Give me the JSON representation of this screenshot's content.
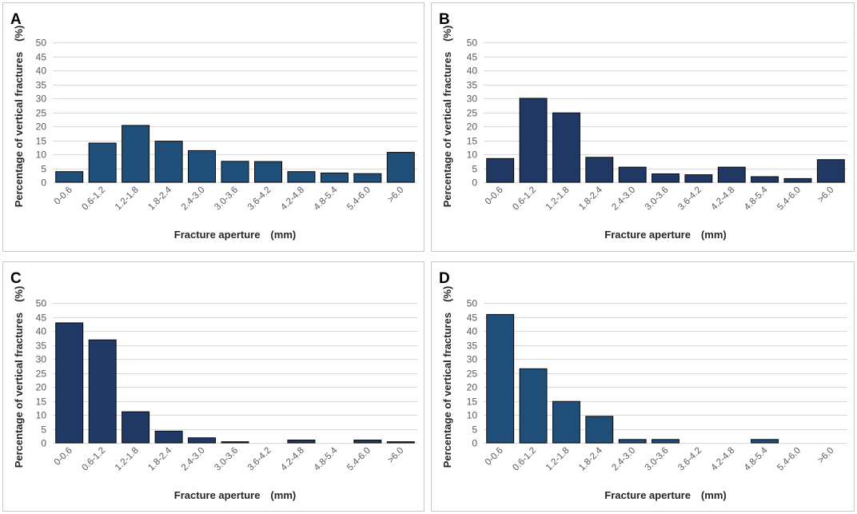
{
  "figure": {
    "xlabel": "Fracture aperture　(mm)",
    "ylabel": "Percentage of vertical fractures　(%)"
  },
  "chart_data": [
    {
      "type": "bar",
      "panel": "A",
      "title": "A",
      "xlabel": "Fracture aperture　(mm)",
      "ylabel": "Percentage of vertical fractures　(%)",
      "categories": [
        "0-0.6",
        "0.6-1.2",
        "1.2-1.8",
        "1.8-2.4",
        "2.4-3.0",
        "3.0-3.6",
        "3.6-4.2",
        "4.2-4.8",
        "4.8-5.4",
        "5.4-6.0",
        ">6.0"
      ],
      "values": [
        3.8,
        14.0,
        20.3,
        14.7,
        11.3,
        7.5,
        7.4,
        3.8,
        3.3,
        3.1,
        10.7
      ],
      "ylim": [
        0,
        50
      ],
      "yticks": [
        0,
        5,
        10,
        15,
        20,
        25,
        30,
        35,
        40,
        45,
        50
      ],
      "bar_color": "#1f4e79",
      "grid": true
    },
    {
      "type": "bar",
      "panel": "B",
      "title": "B",
      "xlabel": "Fracture aperture　(mm)",
      "ylabel": "Percentage of vertical fractures　(%)",
      "categories": [
        "0-0.6",
        "0.6-1.2",
        "1.2-1.8",
        "1.8-2.4",
        "2.4-3.0",
        "3.0-3.6",
        "3.6-4.2",
        "4.2-4.8",
        "4.8-5.4",
        "5.4-6.0",
        ">6.0"
      ],
      "values": [
        8.5,
        30.0,
        24.8,
        8.9,
        5.4,
        3.0,
        2.7,
        5.4,
        2.0,
        1.3,
        8.1
      ],
      "ylim": [
        0,
        50
      ],
      "yticks": [
        0,
        5,
        10,
        15,
        20,
        25,
        30,
        35,
        40,
        45,
        50
      ],
      "bar_color": "#1f3864",
      "grid": true
    },
    {
      "type": "bar",
      "panel": "C",
      "title": "C",
      "xlabel": "Fracture aperture　(mm)",
      "ylabel": "Percentage of vertical fractures　(%)",
      "categories": [
        "0-0.6",
        "0.6-1.2",
        "1.2-1.8",
        "1.8-2.4",
        "2.4-3.0",
        "3.0-3.6",
        "3.6-4.2",
        "4.2-4.8",
        "4.8-5.4",
        "5.4-6.0",
        ">6.0"
      ],
      "values": [
        42.9,
        36.8,
        11.1,
        4.2,
        1.8,
        0.4,
        0,
        1.0,
        0,
        1.0,
        0.4
      ],
      "ylim": [
        0,
        50
      ],
      "yticks": [
        0,
        5,
        10,
        15,
        20,
        25,
        30,
        35,
        40,
        45,
        50
      ],
      "bar_color": "#1f3864",
      "grid": true
    },
    {
      "type": "bar",
      "panel": "D",
      "title": "D",
      "xlabel": "Fracture aperture　(mm)",
      "ylabel": "Percentage of vertical fractures　(%)",
      "categories": [
        "0-0.6",
        "0.6-1.2",
        "1.2-1.8",
        "1.8-2.4",
        "2.4-3.0",
        "3.0-3.6",
        "3.6-4.2",
        "4.2-4.8",
        "4.8-5.4",
        "5.4-6.0",
        ">6.0"
      ],
      "values": [
        45.9,
        26.5,
        14.8,
        9.5,
        1.2,
        1.2,
        0,
        0,
        1.2,
        0,
        0
      ],
      "ylim": [
        0,
        50
      ],
      "yticks": [
        0,
        5,
        10,
        15,
        20,
        25,
        30,
        35,
        40,
        45,
        50
      ],
      "bar_color": "#1f4e79",
      "grid": true
    }
  ]
}
